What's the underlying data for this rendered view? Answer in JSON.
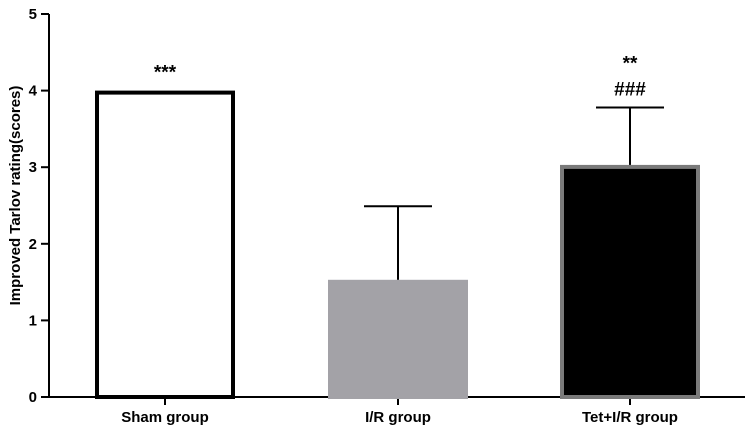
{
  "chart_data": {
    "type": "bar",
    "title": "",
    "xlabel": "",
    "ylabel": "Improved Tarlov rating(scores)",
    "ylim": [
      0,
      5
    ],
    "yticks": [
      "0",
      "1",
      "2",
      "3",
      "4",
      "5"
    ],
    "categories": [
      "Sham group",
      "I/R group",
      "Tet+I/R group"
    ],
    "values": [
      4.0,
      1.53,
      3.03
    ],
    "errors": [
      0,
      0.96,
      0.75
    ],
    "bar_fills": [
      "#ffffff",
      "#a3a2a7",
      "#000000"
    ],
    "bar_strokes": [
      "#000000",
      "#a3a2a7",
      "#7a7a7a"
    ],
    "annotations": [
      {
        "category": "Sham group",
        "lines": [
          "***"
        ]
      },
      {
        "category": "I/R group",
        "lines": []
      },
      {
        "category": "Tet+I/R group",
        "lines": [
          "**",
          "###"
        ]
      }
    ],
    "grid": false,
    "legend": "none"
  }
}
